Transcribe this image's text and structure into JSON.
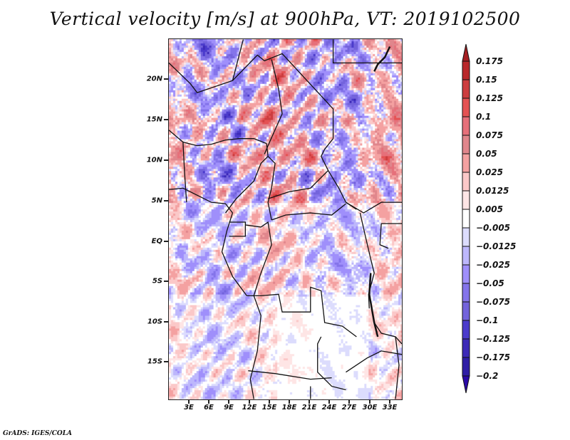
{
  "title": "Vertical velocity [m/s] at 900hPa, VT: 2019102500",
  "credit": "GrADS: IGES/COLA",
  "chart_data": {
    "type": "heatmap",
    "title": "Vertical velocity [m/s] at 900hPa, VT: 2019102500",
    "variable": "Vertical velocity",
    "units": "m/s",
    "level": "900hPa",
    "valid_time": "2019102500",
    "lon_range": [
      0,
      35
    ],
    "lat_range": [
      -20,
      24.5
    ],
    "y_ticks": [
      "20N",
      "15N",
      "10N",
      "5N",
      "EQ",
      "5S",
      "10S",
      "15S"
    ],
    "y_tick_values": [
      20,
      15,
      10,
      5,
      0,
      -5,
      -10,
      -15
    ],
    "x_ticks": [
      "3E",
      "6E",
      "9E",
      "12E",
      "15E",
      "18E",
      "21E",
      "24E",
      "27E",
      "30E",
      "33E"
    ],
    "x_tick_values": [
      3,
      6,
      9,
      12,
      15,
      18,
      21,
      24,
      27,
      30,
      33
    ],
    "colorbar": {
      "labels": [
        "0.175",
        "0.15",
        "0.125",
        "0.1",
        "0.075",
        "0.05",
        "0.025",
        "0.0125",
        "0.005",
        "−0.005",
        "−0.0125",
        "−0.025",
        "−0.05",
        "−0.075",
        "−0.1",
        "−0.125",
        "−0.175",
        "−0.2"
      ],
      "levels": [
        0.175,
        0.15,
        0.125,
        0.1,
        0.075,
        0.05,
        0.025,
        0.0125,
        0.005,
        -0.005,
        -0.0125,
        -0.025,
        -0.05,
        -0.075,
        -0.1,
        -0.125,
        -0.175,
        -0.2
      ],
      "colors": [
        "#a51f22",
        "#b9282b",
        "#cc3d3f",
        "#e45253",
        "#e6707a",
        "#e0868c",
        "#f4a1a1",
        "#fbc8c8",
        "#fee5e5",
        "#ffffff",
        "#dcdcfd",
        "#bdb7fc",
        "#9f8ffb",
        "#8474ea",
        "#7363dc",
        "#4b3bcc",
        "#3d2ab8",
        "#2f1ea6",
        "#2a0aa8"
      ],
      "extend": "both"
    },
    "grid": false,
    "legend": "right"
  }
}
